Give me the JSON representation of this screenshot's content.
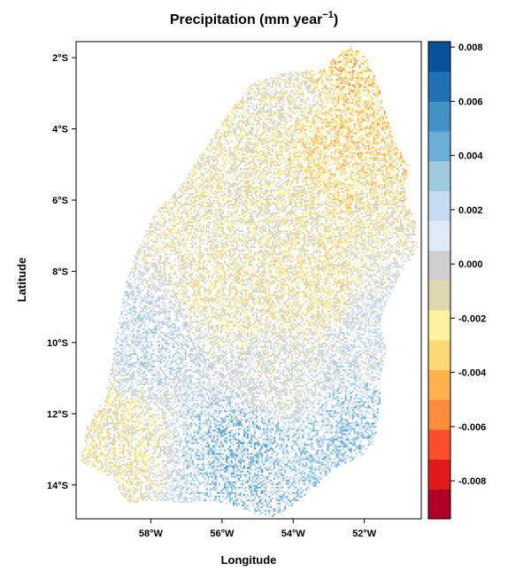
{
  "chart_data": {
    "type": "heatmap",
    "title": "Precipitation (mm year",
    "title_exponent": "−1",
    "title_close": ")",
    "xlabel": "Longitude",
    "ylabel": "Latitude",
    "xlim": [
      -60.1,
      -50.4
    ],
    "ylim": [
      -14.95,
      -1.55
    ],
    "x_ticks": [
      {
        "value": -58,
        "label": "58°W"
      },
      {
        "value": -56,
        "label": "56°W"
      },
      {
        "value": -54,
        "label": "54°W"
      },
      {
        "value": -52,
        "label": "52°W"
      }
    ],
    "y_ticks": [
      {
        "value": -2,
        "label": "2°S"
      },
      {
        "value": -4,
        "label": "4°S"
      },
      {
        "value": -6,
        "label": "6°S"
      },
      {
        "value": -8,
        "label": "8°S"
      },
      {
        "value": -10,
        "label": "10°S"
      },
      {
        "value": -12,
        "label": "12°S"
      },
      {
        "value": -14,
        "label": "14°S"
      }
    ],
    "colorbar": {
      "range": [
        -0.0094,
        0.0082
      ],
      "colors": [
        "#b10026",
        "#e31a1c",
        "#fc4e2a",
        "#fd8d3c",
        "#feb24c",
        "#fed976",
        "#fff3a0",
        "#dcd8b0",
        "#d0d0d0",
        "#deebf7",
        "#c6dbef",
        "#9ecae1",
        "#6baed6",
        "#4292c6",
        "#2171b5",
        "#08519c"
      ],
      "tick_values": [
        0.008,
        0.006,
        0.004,
        0.002,
        0.0,
        -0.002,
        -0.004,
        -0.006,
        -0.008
      ],
      "tick_labels": [
        "0.008",
        "0.006",
        "0.004",
        "0.002",
        "0.000",
        "-0.002",
        "-0.004",
        "-0.006",
        "-0.008"
      ]
    },
    "region_outline_lonlat": [
      [
        -52.4,
        -1.6
      ],
      [
        -51.9,
        -2.1
      ],
      [
        -51.6,
        -2.9
      ],
      [
        -51.4,
        -3.6
      ],
      [
        -51.2,
        -4.3
      ],
      [
        -50.8,
        -5.0
      ],
      [
        -50.9,
        -5.8
      ],
      [
        -50.6,
        -6.6
      ],
      [
        -50.5,
        -7.3
      ],
      [
        -51.0,
        -8.0
      ],
      [
        -51.4,
        -8.8
      ],
      [
        -51.6,
        -9.5
      ],
      [
        -51.4,
        -10.2
      ],
      [
        -51.6,
        -11.0
      ],
      [
        -51.6,
        -11.8
      ],
      [
        -51.7,
        -12.6
      ],
      [
        -52.1,
        -13.2
      ],
      [
        -52.9,
        -13.5
      ],
      [
        -53.4,
        -14.0
      ],
      [
        -54.1,
        -14.6
      ],
      [
        -54.7,
        -14.9
      ],
      [
        -55.6,
        -14.6
      ],
      [
        -56.4,
        -14.4
      ],
      [
        -57.1,
        -14.5
      ],
      [
        -57.9,
        -14.4
      ],
      [
        -58.7,
        -14.5
      ],
      [
        -59.1,
        -13.8
      ],
      [
        -60.0,
        -13.3
      ],
      [
        -59.8,
        -12.3
      ],
      [
        -59.3,
        -11.5
      ],
      [
        -59.1,
        -10.4
      ],
      [
        -58.9,
        -9.2
      ],
      [
        -58.7,
        -8.2
      ],
      [
        -58.3,
        -7.1
      ],
      [
        -57.9,
        -6.3
      ],
      [
        -57.2,
        -5.6
      ],
      [
        -56.5,
        -4.5
      ],
      [
        -55.9,
        -3.6
      ],
      [
        -55.2,
        -2.7
      ],
      [
        -54.2,
        -2.4
      ],
      [
        -53.2,
        -2.3
      ],
      [
        -52.4,
        -1.6
      ]
    ],
    "cell_size_deg": 0.05,
    "cell_density": 0.55,
    "value_field_samples": [
      {
        "lon": -52.8,
        "lat": -4.0,
        "value": -0.003
      },
      {
        "lon": -52.6,
        "lat": -2.4,
        "value": -0.0035
      },
      {
        "lon": -54.0,
        "lat": -3.0,
        "value": -0.001
      },
      {
        "lon": -55.5,
        "lat": -6.0,
        "value": -0.0012
      },
      {
        "lon": -56.0,
        "lat": -8.5,
        "value": -0.0015
      },
      {
        "lon": -53.5,
        "lat": -8.5,
        "value": -0.0018
      },
      {
        "lon": -58.0,
        "lat": -10.0,
        "value": 0.0018
      },
      {
        "lon": -55.5,
        "lat": -12.8,
        "value": 0.0032
      },
      {
        "lon": -52.0,
        "lat": -12.5,
        "value": 0.003
      },
      {
        "lon": -53.2,
        "lat": -13.3,
        "value": 0.0028
      },
      {
        "lon": -51.8,
        "lat": -9.8,
        "value": 0.0012
      },
      {
        "lon": -59.2,
        "lat": -12.5,
        "value": -0.0016
      },
      {
        "lon": -54.5,
        "lat": -11.0,
        "value": 0.0002
      }
    ]
  }
}
